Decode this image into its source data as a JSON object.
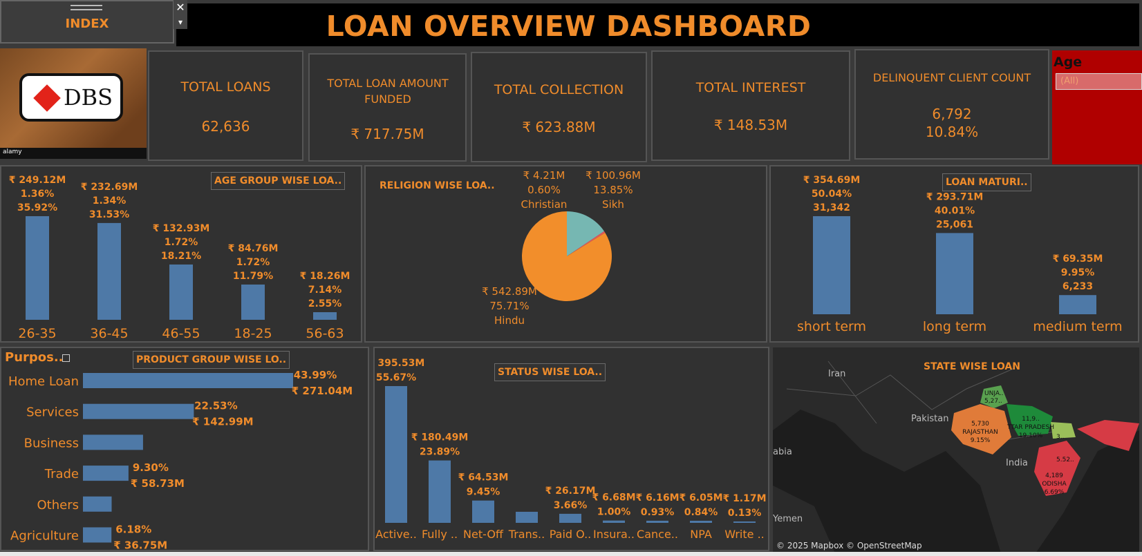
{
  "header": {
    "title": "LOAN OVERVIEW DASHBOARD",
    "index_label": "INDEX",
    "close_glyph": "✕",
    "dropdown_glyph": "▾"
  },
  "logo": {
    "brand": "DBS",
    "watermark": "alamy"
  },
  "kpis": [
    {
      "label": "TOTAL LOANS",
      "value": "62,636"
    },
    {
      "label": "TOTAL LOAN AMOUNT FUNDED",
      "value": "₹ 717.75M"
    },
    {
      "label": "TOTAL COLLECTION",
      "value": "₹ 623.88M"
    },
    {
      "label": "TOTAL INTEREST",
      "value": "₹ 148.53M"
    },
    {
      "label": "DELINQUENT CLIENT COUNT",
      "value": "6,792",
      "value2": "10.84%"
    }
  ],
  "age_filter": {
    "label": "Age",
    "value": "(All)"
  },
  "colors": {
    "bar": "#4e79a7",
    "accent": "#f08c2b",
    "panel": "#313131",
    "filter": "#b00000"
  },
  "chart_data": [
    {
      "type": "bar",
      "title": "AGE GROUP WISE LOA..",
      "categories": [
        "26-35",
        "36-45",
        "46-55",
        "18-25",
        "56-63"
      ],
      "values": [
        249.12,
        232.69,
        132.93,
        84.76,
        18.26
      ],
      "labels": [
        [
          "₹ 249.12M",
          "1.36%",
          "35.92%"
        ],
        [
          "₹ 232.69M",
          "1.34%",
          "31.53%"
        ],
        [
          "₹ 132.93M",
          "1.72%",
          "18.21%"
        ],
        [
          "₹ 84.76M",
          "1.72%",
          "11.79%"
        ],
        [
          "₹ 18.26M",
          "7.14%",
          "2.55%"
        ]
      ]
    },
    {
      "type": "pie",
      "title": "RELIGION WISE LOA..",
      "slices": [
        {
          "name": "Hindu",
          "value": 542.89,
          "percent": 75.71,
          "label": "₹ 542.89M",
          "pct_label": "75.71%",
          "color": "#f28e2b"
        },
        {
          "name": "Christian",
          "value": 4.21,
          "percent": 0.6,
          "label": "₹ 4.21M",
          "pct_label": "0.60%",
          "color": "#e15759"
        },
        {
          "name": "Sikh",
          "value": 100.96,
          "percent": 13.85,
          "label": "₹ 100.96M",
          "pct_label": "13.85%",
          "color": "#76b7b2"
        }
      ]
    },
    {
      "type": "bar",
      "title": "LOAN MATURI..",
      "categories": [
        "short term",
        "long term",
        "medium term"
      ],
      "values": [
        354.69,
        293.71,
        69.35
      ],
      "labels": [
        [
          "₹ 354.69M",
          "50.04%",
          "31,342"
        ],
        [
          "₹ 293.71M",
          "40.01%",
          "25,061"
        ],
        [
          "₹ 69.35M",
          "9.95%",
          "6,233"
        ]
      ]
    },
    {
      "type": "bar",
      "orientation": "horizontal",
      "title": "PRODUCT GROUP WISE LO..",
      "header_label": "Purpos..",
      "categories": [
        "Home Loan",
        "Services",
        "Business",
        "Trade",
        "Others",
        "Agriculture"
      ],
      "values": [
        271.04,
        142.99,
        77.5,
        58.73,
        37.0,
        36.75
      ],
      "labels": [
        [
          "43.99%",
          "₹ 271.04M"
        ],
        [
          "22.53%",
          "₹ 142.99M"
        ],
        [],
        [
          "9.30%",
          "₹ 58.73M"
        ],
        [],
        [
          "6.18%",
          "₹ 36.75M"
        ]
      ]
    },
    {
      "type": "bar",
      "title": "STATUS WISE LOA..",
      "categories": [
        "Active..",
        "Fully ..",
        "Net-Off",
        "Trans..",
        "Paid O..",
        "Insura..",
        "Cance..",
        "NPA",
        "Write .."
      ],
      "values": [
        395.53,
        180.49,
        64.53,
        32.0,
        26.17,
        6.68,
        6.16,
        6.05,
        1.17
      ],
      "labels": [
        [
          "₹ 395.53M",
          "55.67%"
        ],
        [
          "₹ 180.49M",
          "23.89%"
        ],
        [
          "₹ 64.53M",
          "9.45%"
        ],
        [],
        [
          "₹ 26.17M",
          "3.66%"
        ],
        [
          "₹ 6.68M",
          "1.00%"
        ],
        [
          "₹ 6.16M",
          "0.93%"
        ],
        [
          "₹ 6.05M",
          "0.84%"
        ],
        [
          "₹ 1.17M",
          "0.13%"
        ]
      ]
    }
  ],
  "map": {
    "title": "STATE WISE LOAN",
    "attribution": "© 2025 Mapbox © OpenStreetMap",
    "place_labels": [
      "Iran",
      "Pakistan",
      "India",
      "abia",
      "Yemen"
    ],
    "state_labels": [
      {
        "name": "UNJA..",
        "value": "5,27..",
        "color": "#59a14f"
      },
      {
        "name": "RAJASTHAN",
        "value": "5,730",
        "pct": "9.15%",
        "color": "#e07b39"
      },
      {
        "name": "TTAR PRADESH",
        "value": "11,9..",
        "pct": "19.10%",
        "color": "#1e8a3a"
      },
      {
        "name": "",
        "value": "3..",
        "color": "#9bbf5a"
      },
      {
        "name": "",
        "value": "5.52..",
        "color": "#d63b45"
      },
      {
        "name": "ODISHA",
        "value": "4,189",
        "pct": "6.69%",
        "color": "#d63b45"
      }
    ]
  }
}
